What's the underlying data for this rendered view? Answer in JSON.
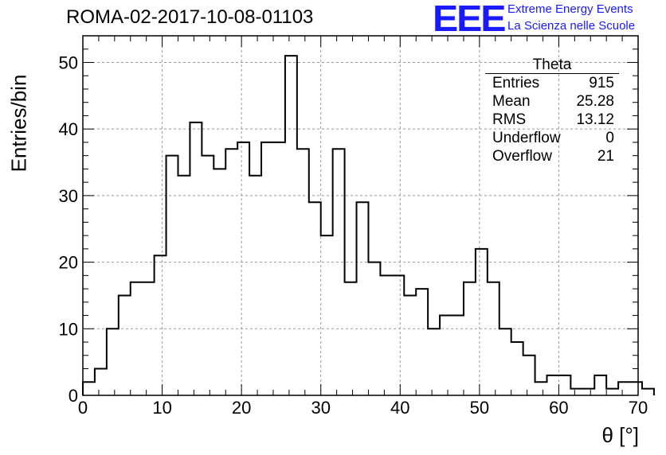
{
  "title": "ROMA-02-2017-10-08-01103",
  "logo": {
    "mark": "EEE",
    "line1": "Extreme Energy Events",
    "line2": "La Scienza nelle Scuole"
  },
  "stats": {
    "name": "Theta",
    "rows": [
      {
        "label": "Entries",
        "value": "915"
      },
      {
        "label": "Mean",
        "value": "25.28"
      },
      {
        "label": "RMS",
        "value": "13.12"
      },
      {
        "label": "Underflow",
        "value": "0"
      },
      {
        "label": "Overflow",
        "value": "21"
      }
    ]
  },
  "chart_data": {
    "type": "bar",
    "style": "step-histogram",
    "title": "ROMA-02-2017-10-08-01103",
    "xlabel": "θ [°]",
    "ylabel": "Entries/bin",
    "xlim": [
      0,
      70
    ],
    "ylim": [
      0,
      54
    ],
    "bin_width": 1.5,
    "x_ticks": [
      0,
      10,
      20,
      30,
      40,
      50,
      60,
      70
    ],
    "y_ticks": [
      0,
      10,
      20,
      30,
      40,
      50
    ],
    "grid": true,
    "values": [
      2,
      4,
      10,
      15,
      17,
      17,
      21,
      36,
      33,
      41,
      36,
      34,
      37,
      38,
      33,
      38,
      38,
      51,
      37,
      29,
      24,
      37,
      17,
      29,
      20,
      18,
      18,
      15,
      16,
      10,
      12,
      12,
      17,
      22,
      17,
      10,
      8,
      6,
      2,
      3,
      3,
      1,
      1,
      3,
      1,
      2,
      2,
      1
    ]
  }
}
